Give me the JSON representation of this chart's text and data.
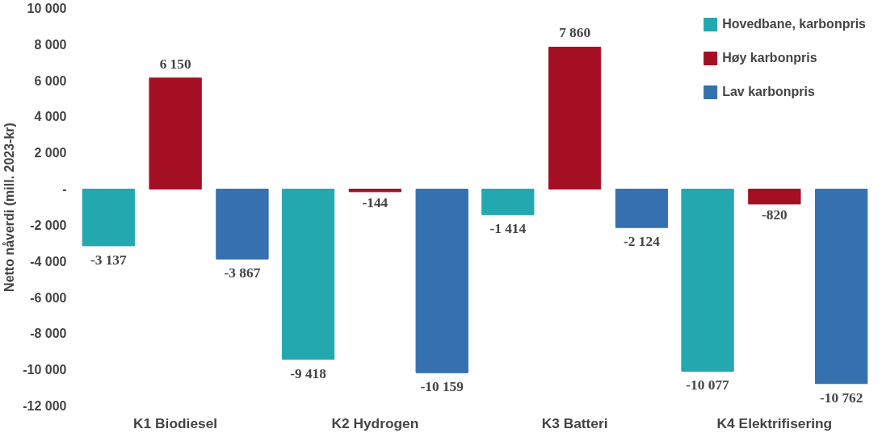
{
  "chart_data": {
    "type": "bar",
    "ylabel": "Netto nåverdi (mill. 2023-kr)",
    "categories": [
      "K1 Biodiesel",
      "K2 Hydrogen",
      "K3 Batteri",
      "K4 Elektrifisering"
    ],
    "series": [
      {
        "name": "Hovedbane, karbonpris",
        "color": "#23a8b0",
        "values": [
          -3137,
          -9418,
          -1414,
          -10077
        ]
      },
      {
        "name": "Høy karbonpris",
        "color": "#a50f24",
        "values": [
          6150,
          -144,
          7860,
          -820
        ]
      },
      {
        "name": "Lav karbonpris",
        "color": "#3570b0",
        "values": [
          -3867,
          -10159,
          -2124,
          -10762
        ]
      }
    ],
    "ylim": [
      -12000,
      10000
    ],
    "yticks": [
      {
        "value": -12000,
        "label": "-12 000"
      },
      {
        "value": -10000,
        "label": "-10 000"
      },
      {
        "value": -8000,
        "label": "-8 000"
      },
      {
        "value": -6000,
        "label": "-6 000"
      },
      {
        "value": -4000,
        "label": "-4 000"
      },
      {
        "value": -2000,
        "label": "-2 000"
      },
      {
        "value": 0,
        "label": "-"
      },
      {
        "value": 2000,
        "label": "2 000"
      },
      {
        "value": 4000,
        "label": "4 000"
      },
      {
        "value": 6000,
        "label": "6 000"
      },
      {
        "value": 8000,
        "label": "8 000"
      },
      {
        "value": 10000,
        "label": "10 000"
      }
    ],
    "data_labels": true,
    "grid": false,
    "legend": "top right"
  }
}
